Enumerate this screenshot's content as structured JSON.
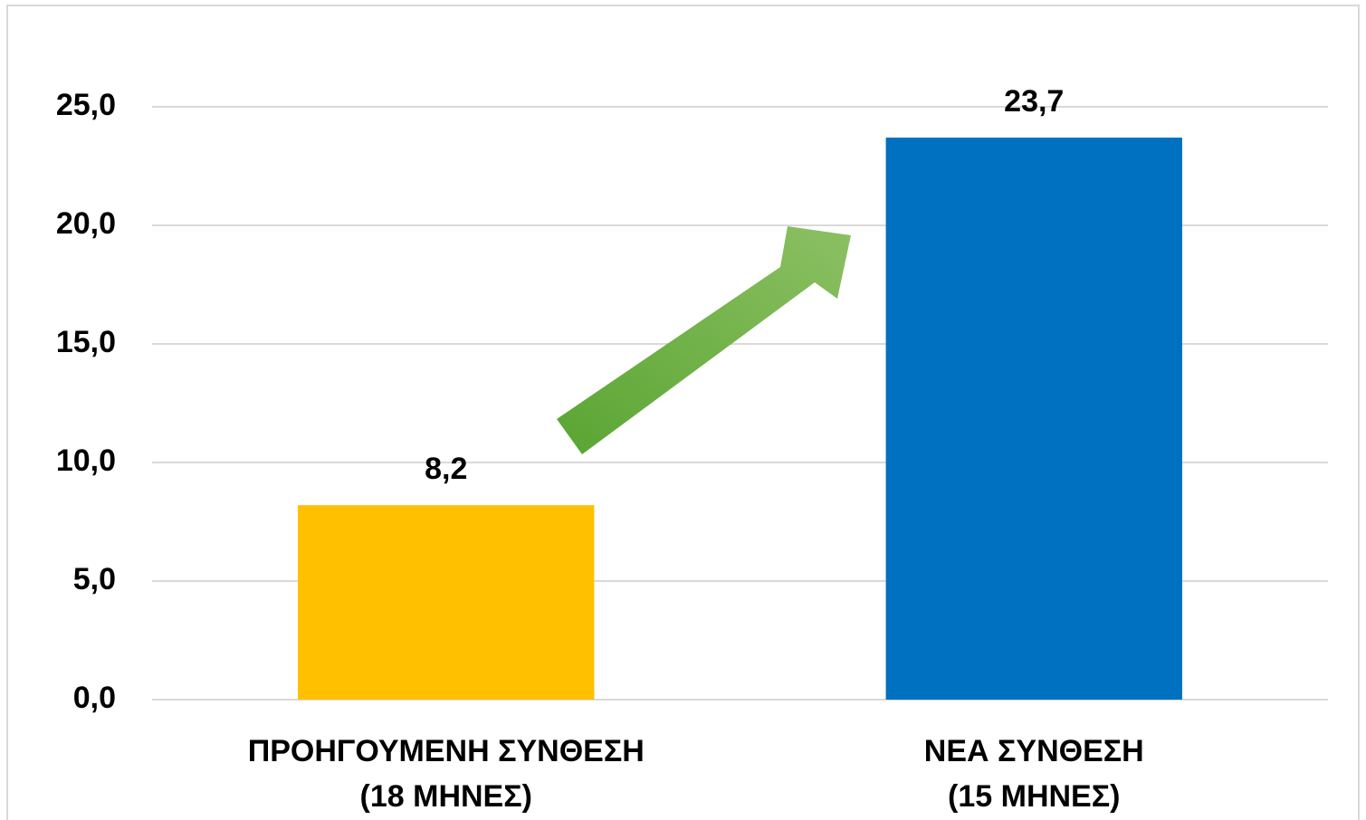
{
  "chart_data": {
    "type": "bar",
    "categories": [
      "ΠΡΟΗΓΟΥΜΕΝΗ ΣΥΝΘΕΣΗ\n(18 ΜΗΝΕΣ)",
      "ΝΕΑ ΣΥΝΘΕΣΗ\n(15 ΜΗΝΕΣ)"
    ],
    "values": [
      8.2,
      23.7
    ],
    "value_labels": [
      "8,2",
      "23,7"
    ],
    "colors": [
      "#ffc000",
      "#0070c0"
    ],
    "ylim": [
      0,
      25
    ],
    "yticks": [
      {
        "value": 0,
        "label": "0,0"
      },
      {
        "value": 5,
        "label": "5,0"
      },
      {
        "value": 10,
        "label": "10,0"
      },
      {
        "value": 15,
        "label": "15,0"
      },
      {
        "value": 20,
        "label": "20,0"
      },
      {
        "value": 25,
        "label": "25,0"
      }
    ],
    "grid": true
  }
}
